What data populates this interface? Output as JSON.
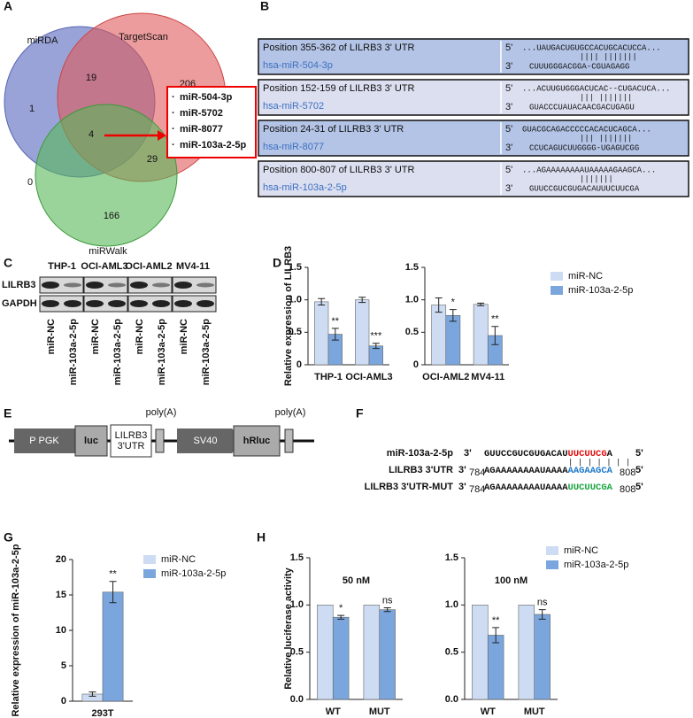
{
  "panels": [
    "A",
    "B",
    "C",
    "D",
    "E",
    "F",
    "G",
    "H"
  ],
  "venn": {
    "sets": [
      "miRDA",
      "TargetScan",
      "miRWalk"
    ],
    "counts": {
      "miRDA_only": 1,
      "miRDA_TargetScan": 19,
      "TargetScan_only": 206,
      "all": 4,
      "miRDA_miRWalk": 0,
      "TargetScan_miRWalk": 29,
      "miRWalk_only": 166
    },
    "bullet": "·",
    "list": [
      "miR-504-3p",
      "miR-5702",
      "miR-8077",
      "miR-103a-2-5p"
    ]
  },
  "alignments": {
    "five_prime": "5'",
    "three_prime": "3'",
    "rows": [
      {
        "position": "Position 355-362 of LILRB3 3' UTR",
        "mirna": "hsa-miR-504-3p",
        "target": "...UAUGACUGUGCCACUGCACUCCA...",
        "pairs": "||||  |||||||",
        "mirna_seq": "CUUUGGGACGGA-CGUAGAGG"
      },
      {
        "position": "Position 152-159 of LILRB3 3' UTR",
        "mirna": "hsa-miR-5702",
        "target": "...ACUUGUGGGACUCAC--CUGACUCA...",
        "pairs": "|||    |||||||",
        "mirna_seq": "GUACCCUAUACAACGACUGAGU"
      },
      {
        "position": "Position 24-31 of LILRB3 3' UTR",
        "mirna": "hsa-miR-8077",
        "target": "GUACGCAGACCCCCACACUCAGCA...",
        "pairs": "|||    |||||||",
        "mirna_seq": "CCUCAGUCUUGGGG-UGAGUCGG"
      },
      {
        "position": "Position 800-807 of LILRB3 3' UTR",
        "mirna": "hsa-miR-103a-2-5p",
        "target": "...AGAAAAAAAAUAAAAAGAAGCA...",
        "pairs": "|||||||",
        "mirna_seq": "GUUCCGUCGUGACAUUUCUUCGA"
      }
    ]
  },
  "blot": {
    "cell_lines": [
      "THP-1",
      "OCI-AML3",
      "OCI-AML2",
      "MV4-11"
    ],
    "rows": [
      "LILRB3",
      "GAPDH"
    ],
    "lanes": [
      "miR-NC",
      "miR-103a-2-5p"
    ]
  },
  "construct": {
    "promoter": "P PGK",
    "reporter": "luc",
    "utr": [
      "LILRB3",
      "3'UTR"
    ],
    "polya": "poly(A)",
    "promoter2": "SV40",
    "reporter2": "hRluc"
  },
  "sequences": {
    "three_prime": "3'",
    "five_prime": "5'",
    "start": "784",
    "end": "808",
    "pairs": "| | | | | | |",
    "mirna": {
      "label": "miR-103a-2-5p",
      "parts": [
        "GUUCCGUCGUGACAU",
        "UUCUUCG",
        "A"
      ]
    },
    "wt": {
      "label": "LILRB3 3'UTR",
      "parts": [
        "AGAAAAAAAAUAAAA",
        "AAGAAGCA"
      ]
    },
    "mut": {
      "label": "LILRB3 3'UTR-MUT",
      "parts": [
        "AGAAAAAAAAUAAAA",
        "UUCUUCGA"
      ]
    }
  },
  "chart_data": [
    {
      "type": "bar",
      "y_label": "Relative expression of LILRB3",
      "categories": [
        "THP-1",
        "OCI-AML3"
      ],
      "series": [
        {
          "name": "miR-NC",
          "color": "#cddcf2",
          "values": [
            0.97,
            1.0
          ],
          "errors": [
            0.05,
            0.04
          ]
        },
        {
          "name": "miR-103a-2-5p",
          "color": "#7aa6dd",
          "values": [
            0.47,
            0.29
          ],
          "errors": [
            0.09,
            0.04
          ]
        }
      ],
      "significance": [
        "**",
        "***"
      ],
      "ylim": [
        0,
        1.5
      ],
      "yticks": [
        0,
        0.5,
        {
          "value": 1,
          "label": "1.0"
        },
        1.5
      ]
    },
    {
      "type": "bar",
      "categories": [
        "OCI-AML2",
        "MV4-11"
      ],
      "series": [
        {
          "color": "#cddcf2",
          "values": [
            0.92,
            0.93
          ],
          "errors": [
            0.11,
            0.02
          ]
        },
        {
          "color": "#7aa6dd",
          "values": [
            0.76,
            0.45
          ],
          "errors": [
            0.09,
            0.14
          ]
        }
      ],
      "significance": [
        "*",
        "**"
      ],
      "ylim": [
        0,
        1.5
      ],
      "yticks": [
        0,
        0.5,
        {
          "value": 1,
          "label": "1.0"
        },
        1.5
      ]
    },
    {
      "type": "bar",
      "y_label": "Relative expression of miR-103a-2-5p",
      "categories": [
        "293T"
      ],
      "series": [
        {
          "name": "miR-NC",
          "color": "#cddcf2",
          "values": [
            1.0
          ],
          "errors": [
            0.3
          ]
        },
        {
          "name": "miR-103a-2-5p",
          "color": "#7aa6dd",
          "values": [
            15.4
          ],
          "errors": [
            1.5
          ]
        }
      ],
      "significance": [
        "**"
      ],
      "ylim": [
        0,
        20
      ],
      "yticks": [
        0,
        5,
        10,
        15,
        20
      ]
    },
    {
      "type": "bar",
      "title": "50 nM",
      "y_label": "Relative luciferase activity",
      "categories": [
        "WT",
        "MUT"
      ],
      "series": [
        {
          "name": "miR-NC",
          "color": "#cddcf2",
          "values": [
            1.0,
            1.0
          ]
        },
        {
          "name": "miR-103a-2-5p",
          "color": "#7aa6dd",
          "values": [
            0.87,
            0.95
          ],
          "errors": [
            0.02,
            0.02
          ]
        }
      ],
      "significance": [
        "*",
        "ns"
      ],
      "ylim": [
        0,
        1.5
      ],
      "yticks": [
        {
          "value": 0,
          "label": "0.0"
        },
        0.5,
        {
          "value": 1,
          "label": "1.0"
        },
        1.5
      ]
    },
    {
      "type": "bar",
      "title": "100 nM",
      "categories": [
        "WT",
        "MUT"
      ],
      "series": [
        {
          "color": "#cddcf2",
          "values": [
            1.0,
            1.0
          ]
        },
        {
          "color": "#7aa6dd",
          "values": [
            0.68,
            0.9
          ],
          "errors": [
            0.08,
            0.05
          ]
        }
      ],
      "significance": [
        "**",
        "ns"
      ],
      "ylim": [
        0,
        1.5
      ],
      "yticks": [
        {
          "value": 0,
          "label": "0.0"
        },
        0.5,
        {
          "value": 1,
          "label": "1.0"
        },
        1.5
      ]
    }
  ]
}
